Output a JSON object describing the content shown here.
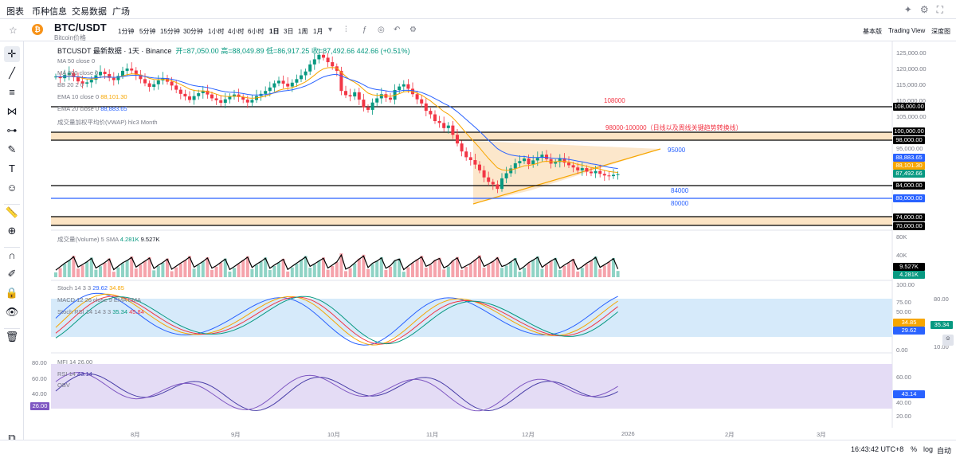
{
  "topnav": {
    "tabs": [
      "图表",
      "币种信息",
      "交易数据",
      "广场"
    ]
  },
  "header": {
    "symbol": "BTC/USDT",
    "subtitle": "Bitcoin价格",
    "intervals": [
      "1分钟",
      "5分钟",
      "15分钟",
      "30分钟",
      "1小时",
      "4小时",
      "6小时",
      "1日",
      "3日",
      "1周",
      "1月"
    ],
    "active_interval": "1日",
    "views": [
      "基本版",
      "Trading View",
      "深度图"
    ]
  },
  "legend": {
    "title": "BTCUSDT 最新数据 · 1天 · Binance",
    "open": "开=87,050.00",
    "high": "高=88,049.89",
    "low": "低=86,917.25",
    "close": "收=87,492.66",
    "change": "442.66 (+0.51%)",
    "ma50": "MA 50 close 0",
    "ma200": "MA 200 close 0",
    "bb": "BB 20 2 0",
    "ema10": "EMA 10 close 0",
    "ema10_val": "88,101.30",
    "ema20": "EMA 20 close 0",
    "ema20_val": "88,883.65",
    "vwap": "成交量加权平均价(VWAP) hlc3 Month"
  },
  "price_axis": [
    "125,000.00",
    "120,000.00",
    "115,000.00",
    "110,000.00",
    "105,000.00",
    "100,000.00",
    "95,000.00",
    "90,000.00",
    "85,000.00",
    "80,000.00",
    "75,000.00",
    "70,000.00"
  ],
  "price_tags": {
    "p108": "108,000.00",
    "p100": "100,000.00",
    "p98": "98,000.00",
    "ema20": "88,883.65",
    "ema10": "88,101.30",
    "last": "87,492.66",
    "p84": "84,000.00",
    "p80": "80,000.00",
    "p74": "74,000.00",
    "p70": "70,000.00"
  },
  "annotations": {
    "a108": "108000",
    "a98": "98000-100000（日线以及周线关键趋势转换线）",
    "a95": "95000",
    "a84": "84000",
    "a80": "80000"
  },
  "volume": {
    "label": "成交量(Volume) 5 SMA",
    "v1": "4.281K",
    "v2": "9.527K",
    "axis_top": "80K",
    "axis_mid": "40K",
    "tag1": "9.527K",
    "tag2": "4.281K"
  },
  "stoch": {
    "label": "Stoch 14 3 3",
    "k": "29.62",
    "d": "34.85",
    "macd": "MACD 12 26 close 9 EMA EMA",
    "rsi_label": "Stoch RSI 14 14 3 3",
    "rk": "35.34",
    "rd": "45.84",
    "axis": [
      "100.00",
      "75.00",
      "50.00",
      "25.00",
      "0.00"
    ],
    "tag_d": "34.85",
    "tag_k": "29.62",
    "side_axis": "80.00",
    "side_tag": "35.34",
    "side_axis2": "10.00"
  },
  "mfi": {
    "label": "MFI 14",
    "val": "26.00",
    "rsi": "RSI 14",
    "rsi_val": "43.14",
    "obv": "OBV",
    "left_axis": [
      "80.00",
      "60.00",
      "40.00"
    ],
    "left_tag": "26.00",
    "right_axis": [
      "60.00",
      "40.00",
      "20.00"
    ],
    "right_tag": "43.14"
  },
  "time_axis": [
    "8月",
    "9月",
    "10月",
    "11月",
    "12月",
    "2026",
    "2月",
    "3月"
  ],
  "status": {
    "time": "16:43:42 UTC+8",
    "percent": "%",
    "log": "log",
    "auto": "自动"
  },
  "colors": {
    "up": "#089981",
    "down": "#f23645",
    "ema10": "#f7a600",
    "ema20": "#2962ff",
    "stoch_bg": "#d6eafa",
    "rsi_bg": "#e4dcf5"
  },
  "chart_data": {
    "type": "candlestick",
    "title": "BTCUSDT 1D",
    "close_series": [
      118000,
      117500,
      118500,
      119200,
      117800,
      116500,
      115800,
      116200,
      117000,
      118400,
      119500,
      118800,
      117600,
      116900,
      118200,
      119800,
      120500,
      119900,
      118600,
      117200,
      115900,
      114800,
      115600,
      116800,
      117500,
      116400,
      115200,
      113900,
      112600,
      111800,
      110700,
      111900,
      112800,
      113600,
      112400,
      111200,
      110600,
      109800,
      110900,
      111700,
      112400,
      111600,
      110800,
      109900,
      110700,
      111900,
      112600,
      113500,
      114600,
      115900,
      116700,
      115800,
      114900,
      116100,
      117200,
      118400,
      119600,
      121800,
      123400,
      124800,
      123900,
      122500,
      121200,
      119800,
      113500,
      112200,
      111800,
      113100,
      110800,
      108400,
      107600,
      109900,
      111200,
      112500,
      111400,
      110800,
      113800,
      114900,
      115600,
      114200,
      112500,
      110900,
      109600,
      107300,
      106200,
      104100,
      103500,
      101900,
      102700,
      99800,
      97100,
      94600,
      92800,
      91900,
      90500,
      88700,
      86500,
      85100,
      84300,
      82900,
      86200,
      87800,
      89300,
      90900,
      91600,
      92400,
      90600,
      91800,
      92600,
      93600,
      92200,
      90800,
      91300,
      92500,
      91100,
      90300,
      89600,
      88700,
      89400,
      88300,
      87800,
      88500,
      87600,
      87100,
      86900,
      87300,
      87492
    ]
  }
}
